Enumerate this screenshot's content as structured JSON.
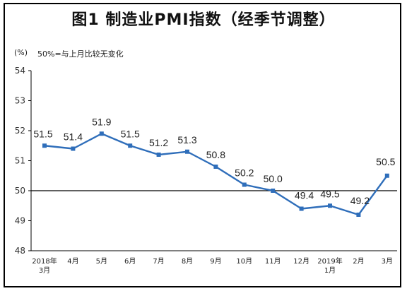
{
  "header": {
    "title": "图1  制造业PMI指数（经季节调整）",
    "unit": "(%)",
    "note": "50%=与上月比较无变化"
  },
  "colors": {
    "series": "#2F6EBA",
    "axis": "#000000",
    "frame": "#000000"
  },
  "chart_data": {
    "type": "line",
    "title": "图1  制造业PMI指数（经季节调整）",
    "ylabel": "(%)",
    "annotation": "50%=与上月比较无变化",
    "ylim": [
      48,
      54
    ],
    "yticks": [
      "48",
      "49",
      "50",
      "51",
      "52",
      "53",
      "54"
    ],
    "grid": false,
    "reference_line": 50,
    "categories": [
      {
        "line1": "2018年",
        "line2": "3月"
      },
      {
        "line1": "4月",
        "line2": ""
      },
      {
        "line1": "5月",
        "line2": ""
      },
      {
        "line1": "6月",
        "line2": ""
      },
      {
        "line1": "7月",
        "line2": ""
      },
      {
        "line1": "8月",
        "line2": ""
      },
      {
        "line1": "9月",
        "line2": ""
      },
      {
        "line1": "10月",
        "line2": ""
      },
      {
        "line1": "11月",
        "line2": ""
      },
      {
        "line1": "12月",
        "line2": ""
      },
      {
        "line1": "2019年",
        "line2": "1月"
      },
      {
        "line1": "2月",
        "line2": ""
      },
      {
        "line1": "3月",
        "line2": ""
      }
    ],
    "series": [
      {
        "values": [
          51.5,
          51.4,
          51.9,
          51.5,
          51.2,
          51.3,
          50.8,
          50.2,
          50.0,
          49.4,
          49.5,
          49.2,
          50.5
        ],
        "labels": [
          "51.5",
          "51.4",
          "51.9",
          "51.5",
          "51.2",
          "51.3",
          "50.8",
          "50.2",
          "50.0",
          "49.4",
          "49.5",
          "49.2",
          "50.5"
        ]
      }
    ]
  }
}
